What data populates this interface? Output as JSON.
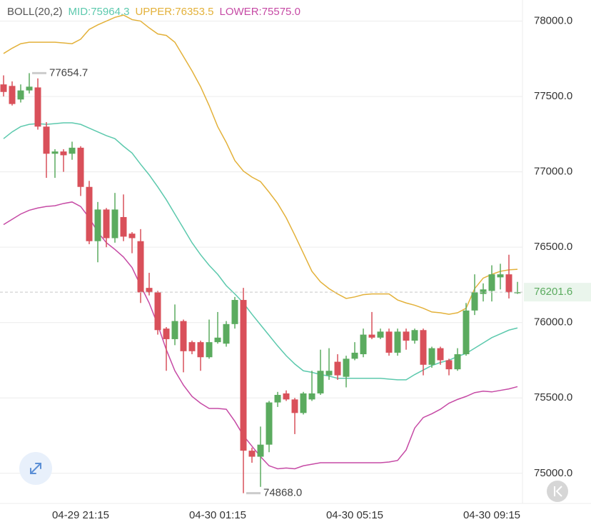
{
  "chart_data": {
    "type": "candlestick",
    "indicator": "BOLL(20,2)",
    "categories": [
      null,
      null,
      null,
      null,
      null,
      null,
      null,
      null,
      null,
      "04-29 21:15",
      null,
      null,
      null,
      null,
      null,
      null,
      null,
      null,
      null,
      null,
      null,
      null,
      null,
      null,
      null,
      "04-30 01:15",
      null,
      null,
      null,
      null,
      null,
      null,
      null,
      null,
      null,
      null,
      null,
      null,
      null,
      null,
      null,
      "04-30 05:15",
      null,
      null,
      null,
      null,
      null,
      null,
      null,
      null,
      null,
      null,
      null,
      null,
      null,
      null,
      null,
      "04-30 09:15",
      null,
      null,
      null
    ],
    "open": [
      77580,
      77570,
      77480,
      77540,
      77560,
      77300,
      77120,
      77135,
      77120,
      77160,
      76900,
      76540,
      76750,
      76560,
      76700,
      76590,
      76540,
      76230,
      76200,
      75960,
      75890,
      76010,
      75870,
      75870,
      75770,
      75870,
      75860,
      75990,
      76150,
      75150,
      75110,
      75190,
      75470,
      75530,
      75490,
      75400,
      75490,
      75530,
      75650,
      75740,
      75640,
      75760,
      75790,
      75920,
      75900,
      75940,
      75800,
      75940,
      75880,
      75950,
      75720,
      75830,
      75750,
      75690,
      75790,
      76080,
      76190,
      76210,
      76300,
      76320,
      76200
    ],
    "high": [
      77640,
      77600,
      77580,
      77654.7,
      77620,
      77330,
      77150,
      77150,
      77200,
      77170,
      76940,
      76800,
      76760,
      76860,
      76850,
      76600,
      76620,
      76330,
      76210,
      75970,
      76120,
      76020,
      75880,
      75880,
      76020,
      76070,
      76010,
      76170,
      76230,
      75170,
      75310,
      75480,
      75540,
      75550,
      75500,
      75540,
      75680,
      75820,
      75830,
      75790,
      75780,
      75870,
      75960,
      76070,
      75960,
      75960,
      75960,
      75960,
      75960,
      75960,
      75840,
      75840,
      75760,
      75830,
      76130,
      76320,
      76260,
      76380,
      76390,
      76450,
      76270
    ],
    "low": [
      77500,
      77440,
      77460,
      77520,
      77280,
      76960,
      76960,
      77000,
      77080,
      76840,
      76520,
      76400,
      76500,
      76530,
      76540,
      76460,
      76130,
      76180,
      75920,
      75680,
      75850,
      75670,
      75790,
      75680,
      75760,
      75860,
      75840,
      75960,
      74868.0,
      75070,
      74910,
      75140,
      75440,
      75480,
      75260,
      75390,
      75480,
      75520,
      75620,
      75620,
      75570,
      75750,
      75770,
      75890,
      75890,
      75780,
      75780,
      75820,
      75860,
      75650,
      75700,
      75720,
      75650,
      75680,
      75780,
      76050,
      76140,
      76140,
      76220,
      76160,
      76190
    ],
    "close": [
      77530,
      77450,
      77540,
      77565,
      77300,
      77120,
      77135,
      77110,
      77160,
      76900,
      76540,
      76750,
      76560,
      76750,
      76570,
      76560,
      76200,
      76200,
      75950,
      75890,
      76010,
      75810,
      75810,
      75770,
      75870,
      75900,
      75990,
      76150,
      75150,
      75110,
      75190,
      75470,
      75520,
      75490,
      75400,
      75530,
      75530,
      75680,
      75680,
      75650,
      75760,
      75800,
      75920,
      75900,
      75940,
      75800,
      75940,
      75880,
      75950,
      75720,
      75830,
      75750,
      75690,
      75790,
      76080,
      76200,
      76220,
      76320,
      76320,
      76200,
      76201.6
    ],
    "up_color": "#5bab5f",
    "down_color": "#d9505a",
    "series": [
      {
        "name": "MID:75964.3",
        "color": "#5cc9ad",
        "values": [
          77220,
          77265,
          77300,
          77315,
          77320,
          77315,
          77320,
          77325,
          77325,
          77315,
          77290,
          77265,
          77240,
          77220,
          77170,
          77125,
          77050,
          76980,
          76900,
          76815,
          76720,
          76625,
          76530,
          76450,
          76380,
          76320,
          76245,
          76190,
          76130,
          76055,
          75985,
          75915,
          75845,
          75780,
          75725,
          75680,
          75670,
          75655,
          75645,
          75630,
          75630,
          75630,
          75630,
          75630,
          75630,
          75625,
          75620,
          75620,
          75655,
          75685,
          75715,
          75735,
          75750,
          75775,
          75795,
          75830,
          75865,
          75900,
          75925,
          75950,
          75964.3
        ]
      },
      {
        "name": "UPPER:76353.5",
        "color": "#e3b13a",
        "values": [
          77785,
          77820,
          77850,
          77860,
          77860,
          77860,
          77860,
          77855,
          77850,
          77880,
          77945,
          77975,
          78000,
          78025,
          78040,
          78010,
          78000,
          77955,
          77915,
          77905,
          77860,
          77765,
          77670,
          77565,
          77440,
          77300,
          77195,
          77075,
          77005,
          76965,
          76935,
          76865,
          76790,
          76695,
          76580,
          76460,
          76340,
          76270,
          76225,
          76190,
          76160,
          76170,
          76185,
          76190,
          76190,
          76190,
          76150,
          76130,
          76115,
          76095,
          76070,
          76065,
          76055,
          76065,
          76095,
          76225,
          76295,
          76320,
          76340,
          76350,
          76353.5
        ]
      },
      {
        "name": "LOWER:75575.0",
        "color": "#c64aa5",
        "values": [
          76650,
          76685,
          76720,
          76745,
          76760,
          76770,
          76775,
          76790,
          76800,
          76770,
          76695,
          76600,
          76530,
          76485,
          76435,
          76365,
          76245,
          76130,
          75985,
          75820,
          75680,
          75585,
          75510,
          75465,
          75430,
          75430,
          75425,
          75345,
          75250,
          75180,
          75110,
          75050,
          75030,
          75035,
          75030,
          75050,
          75060,
          75070,
          75070,
          75070,
          75070,
          75070,
          75070,
          75070,
          75070,
          75075,
          75085,
          75155,
          75300,
          75370,
          75395,
          75425,
          75465,
          75490,
          75510,
          75535,
          75545,
          75540,
          75550,
          75560,
          75575.0
        ]
      }
    ],
    "max_label": "77654.7",
    "min_label": "74868.0",
    "last_label": "76201.6",
    "ylim": [
      74800,
      78140
    ],
    "yticks": [
      {
        "value": 75000,
        "label": "75000.0"
      },
      {
        "value": 75500,
        "label": "75500.0"
      },
      {
        "value": 76000,
        "label": "76000.0"
      },
      {
        "value": 76500,
        "label": "76500.0"
      },
      {
        "value": 77000,
        "label": "77000.0"
      },
      {
        "value": 77500,
        "label": "77500.0"
      },
      {
        "value": 78000,
        "label": "78000.0"
      }
    ],
    "grid": true
  }
}
